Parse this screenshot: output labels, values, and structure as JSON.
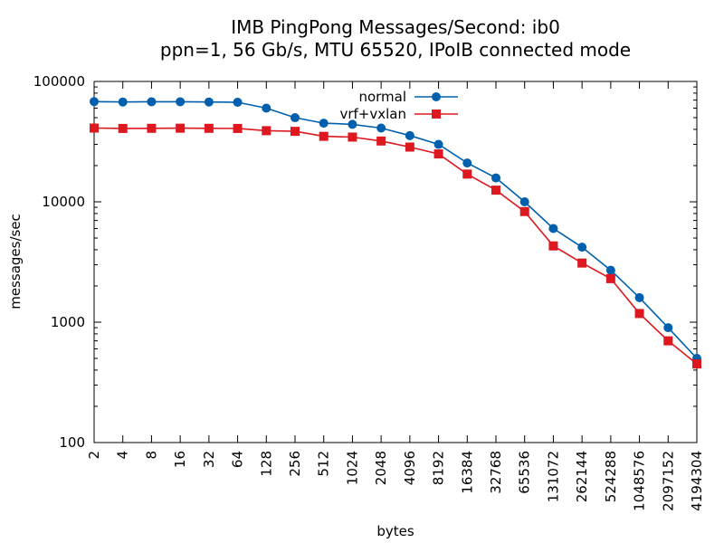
{
  "chart_data": {
    "type": "line",
    "title": "IMB PingPong Messages/Second: ib0",
    "subtitle": "ppn=1, 56 Gb/s, MTU 65520, IPoIB connected mode",
    "xlabel": "bytes",
    "ylabel": "messages/sec",
    "x_scale": "log2",
    "y_scale": "log10",
    "xlim": [
      2,
      4194304
    ],
    "ylim": [
      100,
      100000
    ],
    "grid": false,
    "legend_position": "top-right",
    "x": [
      2,
      4,
      8,
      16,
      32,
      64,
      128,
      256,
      512,
      1024,
      2048,
      4096,
      8192,
      16384,
      32768,
      65536,
      131072,
      262144,
      524288,
      1048576,
      2097152,
      4194304
    ],
    "x_tick_labels": [
      "2",
      "4",
      "8",
      "16",
      "32",
      "64",
      "128",
      "256",
      "512",
      "1024",
      "2048",
      "4096",
      "8192",
      "16384",
      "32768",
      "65536",
      "131072",
      "262144",
      "524288",
      "1048576",
      "2097152",
      "4194304"
    ],
    "y_ticks": [
      100,
      1000,
      10000,
      100000
    ],
    "y_tick_labels": [
      "100",
      "1000",
      "10000",
      "100000"
    ],
    "series": [
      {
        "name": "normal",
        "color": "#0060ad",
        "marker": "circle",
        "values": [
          68000,
          67500,
          67800,
          67800,
          67500,
          67200,
          60000,
          50000,
          45000,
          44000,
          41000,
          35500,
          30000,
          21000,
          15800,
          10000,
          6000,
          4200,
          2700,
          1600,
          900,
          500
        ]
      },
      {
        "name": "vrf+vxlan",
        "color": "#dd181f",
        "marker": "square",
        "values": [
          41000,
          40700,
          40800,
          40900,
          40800,
          40700,
          39000,
          38500,
          35000,
          34500,
          32000,
          28500,
          25000,
          17000,
          12500,
          8300,
          4300,
          3100,
          2300,
          1180,
          700,
          450
        ]
      }
    ]
  }
}
